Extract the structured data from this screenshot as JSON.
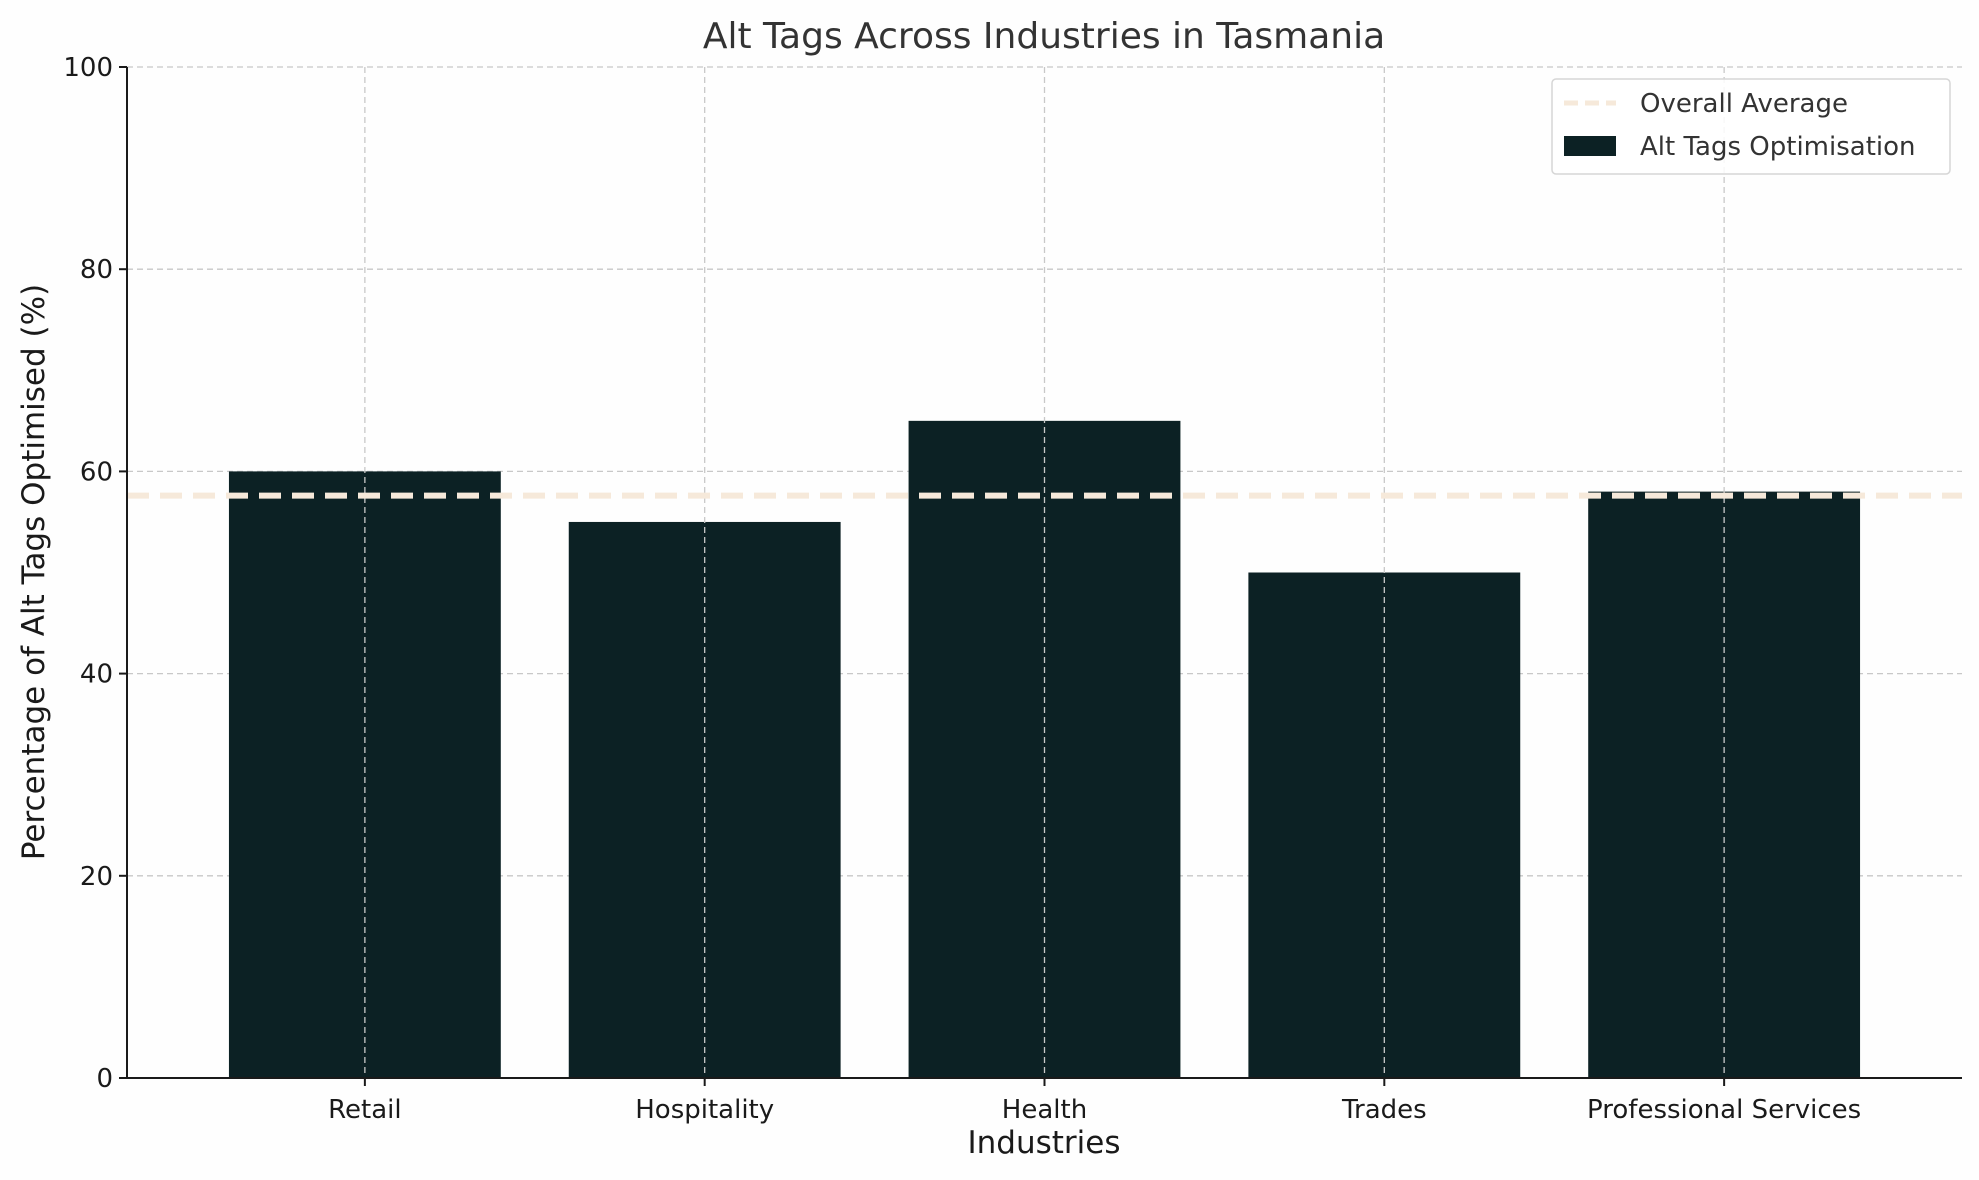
{
  "chart_data": {
    "type": "bar",
    "title": "Alt Tags Across Industries in Tasmania",
    "xlabel": "Industries",
    "ylabel": "Percentage of Alt Tags Optimised (%)",
    "categories": [
      "Retail",
      "Hospitality",
      "Health",
      "Trades",
      "Professional Services"
    ],
    "series": [
      {
        "name": "Alt Tags Optimisation",
        "values": [
          60,
          55,
          65,
          50,
          58
        ],
        "color": "#0c2124"
      }
    ],
    "reference_lines": [
      {
        "name": "Overall Average",
        "value": 57.6,
        "style": "dashed",
        "color": "#f6e9da"
      }
    ],
    "ylim": [
      0,
      100
    ],
    "yticks": [
      "0",
      "20",
      "40",
      "60",
      "80",
      "100"
    ],
    "grid": true,
    "legend_position": "top-right"
  }
}
